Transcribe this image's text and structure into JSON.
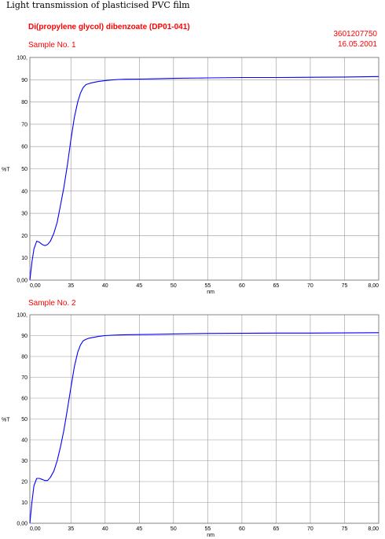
{
  "title": "Light transmission of plasticised PVC film",
  "compound": "Di(propylene glycol) dibenzoate (DP01-041)",
  "code": "3601207750",
  "date": "16.05.2001",
  "colors": {
    "header_text": "#ff0000",
    "grid": "#999999",
    "line": "#0000ff"
  },
  "chart_data": [
    {
      "type": "line",
      "title": "Sample No. 1",
      "xlabel": "nm",
      "ylabel": "%T",
      "xlim": [
        29,
        80
      ],
      "ylim": [
        0,
        100
      ],
      "x_ticks": [
        "0,00",
        "35",
        "40",
        "45",
        "50",
        "55",
        "60",
        "65",
        "70",
        "75",
        "8,00"
      ],
      "y_ticks": [
        "0,00",
        "10",
        "20",
        "30",
        "40",
        "50",
        "60",
        "70",
        "80",
        "90",
        "100,"
      ],
      "grid": true,
      "series": [
        {
          "x": [
            29.0,
            29.3,
            29.6,
            30.0,
            30.4,
            30.8,
            31.2,
            31.6,
            32.0,
            32.5,
            33.0,
            33.5,
            34.0,
            34.5,
            35.0,
            35.5,
            36.0,
            36.4,
            36.8,
            37.2,
            37.6,
            38.0,
            38.5,
            39.0,
            40.0,
            41.0,
            42.0,
            43.0,
            45.0,
            47.0,
            50.0,
            55.0,
            60.0,
            65.0,
            70.0,
            75.0,
            80.0
          ],
          "y": [
            0,
            8,
            14,
            17.5,
            17,
            16,
            15.5,
            16,
            17.5,
            21,
            26,
            34,
            42,
            52,
            63,
            73,
            80,
            84,
            86.5,
            87.8,
            88.2,
            88.6,
            88.9,
            89.2,
            89.6,
            89.9,
            90.1,
            90.2,
            90.3,
            90.4,
            90.6,
            90.8,
            91.0,
            91.0,
            91.1,
            91.2,
            91.4
          ]
        }
      ]
    },
    {
      "type": "line",
      "title": "Sample No. 2",
      "xlabel": "nm",
      "ylabel": "%T",
      "xlim": [
        29,
        80
      ],
      "ylim": [
        0,
        100
      ],
      "x_ticks": [
        "0,00",
        "35",
        "40",
        "45",
        "50",
        "55",
        "60",
        "65",
        "70",
        "75",
        "8,00"
      ],
      "y_ticks": [
        "0,00",
        "10",
        "20",
        "30",
        "40",
        "50",
        "60",
        "70",
        "80",
        "90",
        "100,"
      ],
      "grid": true,
      "series": [
        {
          "x": [
            29.0,
            29.3,
            29.6,
            30.0,
            30.4,
            30.8,
            31.2,
            31.6,
            32.0,
            32.5,
            33.0,
            33.5,
            34.0,
            34.5,
            35.0,
            35.5,
            36.0,
            36.4,
            36.8,
            37.2,
            37.6,
            38.0,
            38.5,
            39.0,
            40.0,
            41.0,
            42.0,
            43.0,
            45.0,
            47.0,
            50.0,
            55.0,
            60.0,
            65.0,
            70.0,
            75.0,
            80.0
          ],
          "y": [
            0,
            10,
            18,
            21.5,
            21.5,
            21,
            20.5,
            20.5,
            22,
            25,
            30,
            37,
            45,
            55,
            65,
            75,
            82,
            85.5,
            87.5,
            88.2,
            88.7,
            89.0,
            89.3,
            89.6,
            90.0,
            90.2,
            90.3,
            90.4,
            90.5,
            90.6,
            90.8,
            91.0,
            91.1,
            91.2,
            91.2,
            91.3,
            91.4
          ]
        }
      ]
    }
  ]
}
